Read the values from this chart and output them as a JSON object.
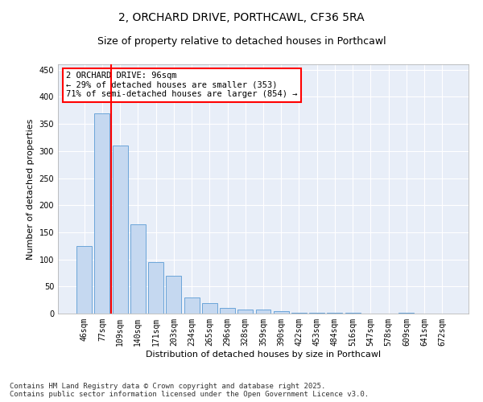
{
  "title_line1": "2, ORCHARD DRIVE, PORTHCAWL, CF36 5RA",
  "title_line2": "Size of property relative to detached houses in Porthcawl",
  "xlabel": "Distribution of detached houses by size in Porthcawl",
  "ylabel": "Number of detached properties",
  "categories": [
    "46sqm",
    "77sqm",
    "109sqm",
    "140sqm",
    "171sqm",
    "203sqm",
    "234sqm",
    "265sqm",
    "296sqm",
    "328sqm",
    "359sqm",
    "390sqm",
    "422sqm",
    "453sqm",
    "484sqm",
    "516sqm",
    "547sqm",
    "578sqm",
    "609sqm",
    "641sqm",
    "672sqm"
  ],
  "values": [
    125,
    370,
    310,
    165,
    95,
    70,
    30,
    20,
    10,
    7,
    8,
    5,
    2,
    1,
    1,
    1,
    0,
    0,
    1,
    0,
    0
  ],
  "bar_color": "#c5d8f0",
  "bar_edge_color": "#5a9bd4",
  "red_line_x": 1.5,
  "annotation_text": "2 ORCHARD DRIVE: 96sqm\n← 29% of detached houses are smaller (353)\n71% of semi-detached houses are larger (854) →",
  "annotation_box_color": "white",
  "annotation_box_edge_color": "red",
  "red_line_color": "red",
  "ylim": [
    0,
    460
  ],
  "yticks": [
    0,
    50,
    100,
    150,
    200,
    250,
    300,
    350,
    400,
    450
  ],
  "background_color": "#e8eef8",
  "grid_color": "white",
  "footer_line1": "Contains HM Land Registry data © Crown copyright and database right 2025.",
  "footer_line2": "Contains public sector information licensed under the Open Government Licence v3.0.",
  "title_fontsize": 10,
  "subtitle_fontsize": 9,
  "axis_label_fontsize": 8,
  "tick_fontsize": 7,
  "annotation_fontsize": 7.5,
  "footer_fontsize": 6.5
}
